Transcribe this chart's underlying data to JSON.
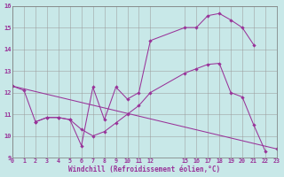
{
  "xlabel": "Windchill (Refroidissement éolien,°C)",
  "bg_color": "#c8e8e8",
  "line_color": "#993399",
  "grid_color": "#999999",
  "ylim": [
    9,
    16
  ],
  "xlim": [
    0,
    23
  ],
  "curve1_x": [
    0,
    1,
    2,
    3,
    4,
    5,
    6,
    7,
    8,
    9,
    10,
    11,
    12,
    15,
    16,
    17,
    18,
    19,
    20,
    21
  ],
  "curve1_y": [
    12.3,
    12.1,
    10.65,
    10.85,
    10.85,
    10.75,
    9.55,
    12.25,
    10.75,
    12.25,
    11.7,
    12.0,
    14.4,
    15.0,
    15.0,
    15.55,
    15.65,
    15.35,
    15.0,
    14.2
  ],
  "curve2_x": [
    2,
    3,
    4,
    5,
    6,
    7,
    8,
    9,
    10,
    11,
    12,
    15,
    16,
    17,
    18,
    19,
    20,
    21,
    22
  ],
  "curve2_y": [
    10.65,
    10.85,
    10.85,
    10.75,
    10.3,
    10.0,
    10.2,
    10.6,
    11.0,
    11.4,
    12.0,
    12.9,
    13.1,
    13.3,
    13.35,
    12.0,
    11.8,
    10.5,
    9.3
  ],
  "curve3_x": [
    0,
    23
  ],
  "curve3_y": [
    12.3,
    9.4
  ],
  "xtick_pos": [
    0,
    1,
    2,
    3,
    4,
    5,
    6,
    7,
    8,
    9,
    10,
    11,
    12,
    15,
    16,
    17,
    18,
    19,
    20,
    21,
    22,
    23
  ],
  "xtick_labels": [
    "0",
    "1",
    "2",
    "3",
    "4",
    "5",
    "6",
    "7",
    "8",
    "9",
    "10",
    "11",
    "12",
    "15",
    "16",
    "17",
    "18",
    "19",
    "20",
    "21",
    "22",
    "23"
  ],
  "ytick_pos": [
    9,
    10,
    11,
    12,
    13,
    14,
    15,
    16
  ],
  "ytick_labels": [
    "9",
    "10",
    "11",
    "12",
    "13",
    "14",
    "15",
    "16"
  ]
}
